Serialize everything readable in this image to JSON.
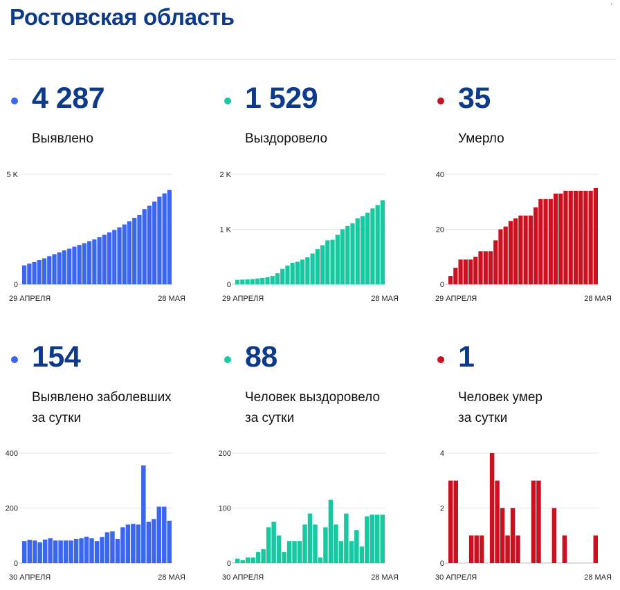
{
  "title": "Ростовская область",
  "corner_mark": "·",
  "chart_data": [
    {
      "id": "p1",
      "type": "bar",
      "color": "#3b66f0",
      "value": "4 287",
      "label": [
        "Выявлено"
      ],
      "yticks": [
        {
          "v": 0,
          "t": "0"
        },
        {
          "v": 5000,
          "t": "5 K"
        }
      ],
      "ylim": [
        0,
        5000
      ],
      "x_start": "29 АПРЕЛЯ",
      "x_end": "28 МАЯ",
      "values": [
        860,
        940,
        1010,
        1100,
        1180,
        1280,
        1370,
        1450,
        1540,
        1620,
        1710,
        1790,
        1870,
        1960,
        2040,
        2140,
        2250,
        2360,
        2470,
        2590,
        2720,
        2860,
        3020,
        3150,
        3420,
        3570,
        3760,
        3980,
        4133,
        4287
      ]
    },
    {
      "id": "p2",
      "type": "bar",
      "color": "#17c9a0",
      "value": "1 529",
      "label": [
        "Выздоровело"
      ],
      "yticks": [
        {
          "v": 0,
          "t": "0"
        },
        {
          "v": 1000,
          "t": "1 K"
        },
        {
          "v": 2000,
          "t": "2 K"
        }
      ],
      "ylim": [
        0,
        2000
      ],
      "x_start": "29 АПРЕЛЯ",
      "x_end": "28 МАЯ",
      "values": [
        80,
        85,
        90,
        95,
        105,
        115,
        130,
        150,
        200,
        280,
        340,
        390,
        410,
        450,
        490,
        560,
        640,
        710,
        800,
        810,
        900,
        1000,
        1060,
        1110,
        1200,
        1240,
        1300,
        1380,
        1441,
        1529
      ]
    },
    {
      "id": "p3",
      "type": "bar",
      "color": "#cc1020",
      "value": "35",
      "label": [
        "Умерло"
      ],
      "yticks": [
        {
          "v": 0,
          "t": "0"
        },
        {
          "v": 20,
          "t": "20"
        },
        {
          "v": 40,
          "t": "40"
        }
      ],
      "ylim": [
        0,
        40
      ],
      "x_start": "29 АПРЕЛЯ",
      "x_end": "28 МАЯ",
      "values": [
        3,
        6,
        9,
        9,
        9,
        10,
        12,
        12,
        12,
        16,
        20,
        21,
        23,
        24,
        25,
        25,
        25,
        28,
        31,
        31,
        31,
        33,
        33,
        34,
        34,
        34,
        34,
        34,
        34,
        35
      ]
    },
    {
      "id": "p4",
      "type": "bar",
      "color": "#3b66f0",
      "value": "154",
      "label": [
        "Выявлено заболевших",
        "за сутки"
      ],
      "yticks": [
        {
          "v": 0,
          "t": "0"
        },
        {
          "v": 200,
          "t": "200"
        },
        {
          "v": 400,
          "t": "400"
        }
      ],
      "ylim": [
        0,
        400
      ],
      "x_start": "30 АПРЕЛЯ",
      "x_end": "28 МАЯ",
      "values": [
        80,
        84,
        82,
        75,
        85,
        90,
        82,
        82,
        82,
        82,
        88,
        90,
        96,
        90,
        80,
        95,
        112,
        115,
        88,
        130,
        140,
        142,
        140,
        355,
        150,
        160,
        205,
        205,
        154
      ]
    },
    {
      "id": "p5",
      "type": "bar",
      "color": "#17c9a0",
      "value": "88",
      "label": [
        "Человек выздоровело",
        "за сутки"
      ],
      "yticks": [
        {
          "v": 0,
          "t": "0"
        },
        {
          "v": 100,
          "t": "100"
        },
        {
          "v": 200,
          "t": "200"
        }
      ],
      "ylim": [
        0,
        200
      ],
      "x_start": "30 АПРЕЛЯ",
      "x_end": "28 МАЯ",
      "values": [
        8,
        5,
        10,
        10,
        20,
        25,
        65,
        75,
        50,
        20,
        40,
        40,
        40,
        70,
        90,
        70,
        10,
        65,
        115,
        70,
        40,
        90,
        40,
        60,
        30,
        85,
        88,
        88,
        88
      ]
    },
    {
      "id": "p6",
      "type": "bar",
      "color": "#cc1020",
      "value": "1",
      "label": [
        "Человек умер",
        "за сутки"
      ],
      "yticks": [
        {
          "v": 0,
          "t": "0"
        },
        {
          "v": 2,
          "t": "2"
        },
        {
          "v": 4,
          "t": "4"
        }
      ],
      "ylim": [
        0,
        4
      ],
      "x_start": "30 АПРЕЛЯ",
      "x_end": "28 МАЯ",
      "values": [
        3,
        3,
        0,
        0,
        1,
        1,
        1,
        0,
        4,
        3,
        2,
        1,
        2,
        1,
        0,
        0,
        3,
        3,
        0,
        0,
        2,
        0,
        1,
        0,
        0,
        0,
        0,
        0,
        1
      ]
    }
  ]
}
